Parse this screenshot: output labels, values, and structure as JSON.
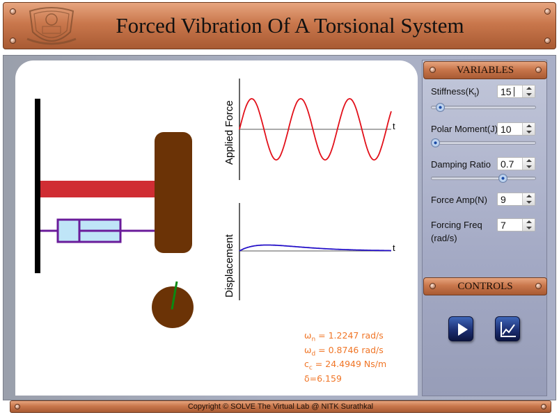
{
  "header": {
    "title": "Forced Vibration Of A Torsional System"
  },
  "graphs": {
    "top_label": "Applied Force",
    "bottom_label": "Displacement",
    "time_marker": "t"
  },
  "readouts": {
    "wn": {
      "symbol": "ω",
      "sub": "n",
      "text": " = 1.2247 rad/s"
    },
    "wd": {
      "symbol": "ω",
      "sub": "d",
      "text": " = 0.8746 rad/s"
    },
    "cc": {
      "symbol": "c",
      "sub": "c",
      "text": " = 24.4949 Ns/m"
    },
    "delta": {
      "text": "δ=6.159"
    }
  },
  "variables": {
    "heading": "VARIABLES",
    "stiffness": {
      "label": "Stiffness(K",
      "label_sub": "t",
      "label_end": ")",
      "value": "15",
      "slider_fraction": 0.05
    },
    "polar_moment": {
      "label": "Polar Moment(J)",
      "value": "10",
      "slider_fraction": 0.0
    },
    "damping_ratio": {
      "label": "Damping Ratio",
      "value": "0.7",
      "slider_fraction": 0.7
    },
    "force_amp": {
      "label": "Force Amp(N)",
      "value": "9"
    },
    "forcing_freq": {
      "label_line1": "Forcing Freq",
      "label_line2": "(rad/s)",
      "value": "7"
    }
  },
  "controls": {
    "heading": "CONTROLS",
    "play_icon": "play-icon",
    "graph_icon": "line-graph-icon"
  },
  "footer": {
    "text": "Copyright © SOLVE The Virtual Lab @ NITK Surathkal"
  },
  "colors": {
    "shaft": "#d02d33",
    "disc": "#6b3306",
    "damper_fill": "#bfe5f7",
    "damper_stroke": "#6a1b9a",
    "force_curve": "#e2101a",
    "displacement_curve": "#2410c8",
    "readout_text": "#f07526",
    "indicator": "#0a8a12"
  }
}
